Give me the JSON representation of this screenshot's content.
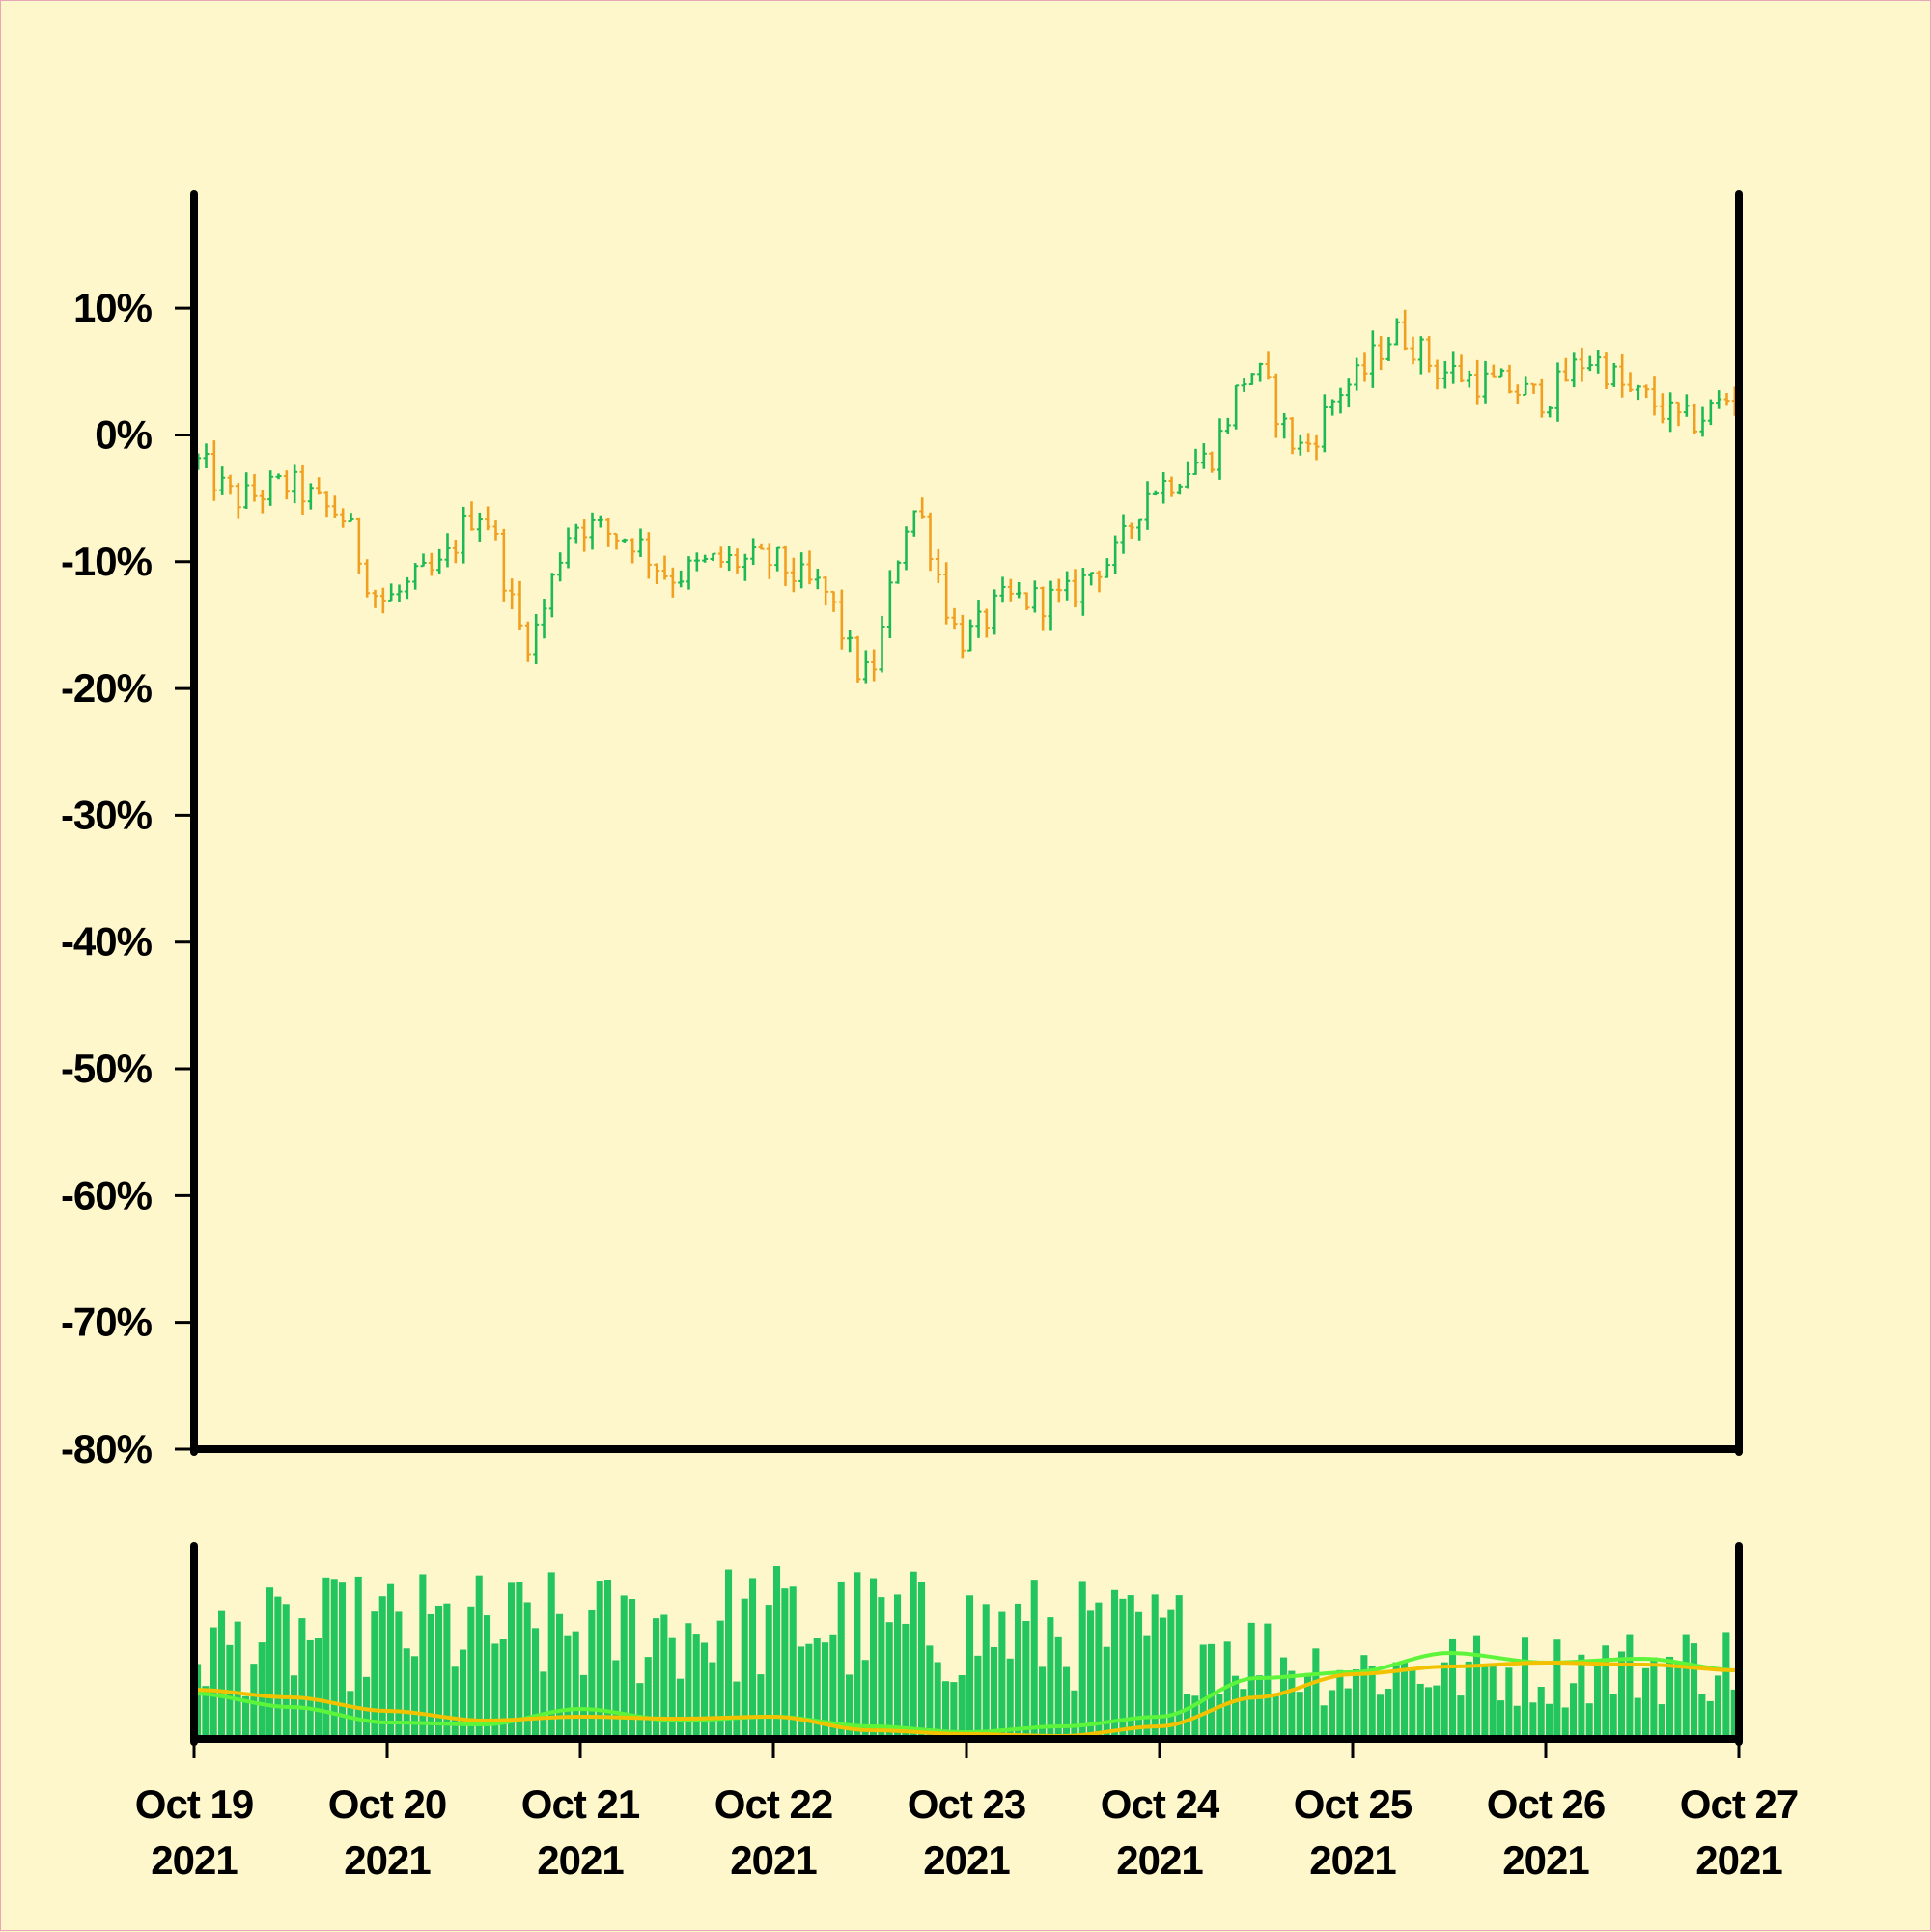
{
  "chart_data": [
    {
      "type": "ohlc",
      "panel": "price",
      "yaxis": {
        "unit": "%",
        "ticks": [
          10,
          0,
          -10,
          -20,
          -30,
          -40,
          -50,
          -60,
          -70,
          -80
        ],
        "tick_labels": [
          "10%",
          "0%",
          "-10%",
          "-20%",
          "-30%",
          "-40%",
          "-50%",
          "-60%",
          "-70%",
          "-80%"
        ],
        "range": [
          -80,
          19
        ]
      },
      "xaxis": {
        "range": [
          "2021-10-19",
          "2021-10-27"
        ],
        "ticks": [
          "2021-10-19",
          "2021-10-20",
          "2021-10-21",
          "2021-10-22",
          "2021-10-23",
          "2021-10-24",
          "2021-10-25",
          "2021-10-26",
          "2021-10-27"
        ],
        "tick_labels": [
          {
            "line1": "Oct 19",
            "line2": "2021"
          },
          {
            "line1": "Oct 20",
            "line2": "2021"
          },
          {
            "line1": "Oct 21",
            "line2": "2021"
          },
          {
            "line1": "Oct 22",
            "line2": "2021"
          },
          {
            "line1": "Oct 23",
            "line2": "2021"
          },
          {
            "line1": "Oct 24",
            "line2": "2021"
          },
          {
            "line1": "Oct 25",
            "line2": "2021"
          },
          {
            "line1": "Oct 26",
            "line2": "2021"
          },
          {
            "line1": "Oct 27",
            "line2": "2021"
          }
        ]
      },
      "colors": {
        "up": "#1db954",
        "down": "#f0a020"
      },
      "bar_interval": "hourly",
      "close_path_anchors": [
        [
          "2021-10-19T00:00",
          -2
        ],
        [
          "2021-10-19T06:00",
          -5
        ],
        [
          "2021-10-19T12:00",
          -4
        ],
        [
          "2021-10-19T18:00",
          -6
        ],
        [
          "2021-10-20T00:00",
          -13
        ],
        [
          "2021-10-20T06:00",
          -11
        ],
        [
          "2021-10-20T12:00",
          -6
        ],
        [
          "2021-10-20T18:00",
          -16
        ],
        [
          "2021-10-21T00:00",
          -7
        ],
        [
          "2021-10-21T06:00",
          -8
        ],
        [
          "2021-10-21T12:00",
          -11
        ],
        [
          "2021-10-21T18:00",
          -10
        ],
        [
          "2021-10-22T00:00",
          -10
        ],
        [
          "2021-10-22T06:00",
          -12
        ],
        [
          "2021-10-22T12:00",
          -19
        ],
        [
          "2021-10-22T18:00",
          -6
        ],
        [
          "2021-10-23T00:00",
          -16
        ],
        [
          "2021-10-23T06:00",
          -13
        ],
        [
          "2021-10-23T12:00",
          -13
        ],
        [
          "2021-10-23T18:00",
          -10
        ],
        [
          "2021-10-24T00:00",
          -4
        ],
        [
          "2021-10-24T06:00",
          -2
        ],
        [
          "2021-10-24T12:00",
          5
        ],
        [
          "2021-10-24T18:00",
          -1
        ],
        [
          "2021-10-25T00:00",
          4
        ],
        [
          "2021-10-25T06:00",
          8
        ],
        [
          "2021-10-25T12:00",
          5
        ],
        [
          "2021-10-25T18:00",
          4
        ],
        [
          "2021-10-26T00:00",
          3
        ],
        [
          "2021-10-26T06:00",
          6
        ],
        [
          "2021-10-26T12:00",
          3
        ],
        [
          "2021-10-26T18:00",
          1
        ],
        [
          "2021-10-27T00:00",
          3
        ]
      ]
    },
    {
      "type": "bar",
      "panel": "volume",
      "colors": {
        "bars": "#22c55e",
        "ma_fast": "#5cf53b",
        "ma_slow": "#f2c200"
      },
      "volume_envelope": [
        [
          "2021-10-19",
          0.6
        ],
        [
          "2021-10-20",
          0.7
        ],
        [
          "2021-10-21",
          0.7
        ],
        [
          "2021-10-22",
          0.75
        ],
        [
          "2021-10-23",
          0.7
        ],
        [
          "2021-10-24",
          0.65
        ],
        [
          "2021-10-25",
          0.45
        ],
        [
          "2021-10-26",
          0.45
        ],
        [
          "2021-10-27",
          0.5
        ]
      ],
      "ma_fast_anchors": [
        [
          "2021-10-19",
          0.22
        ],
        [
          "2021-10-19T12:00",
          0.15
        ],
        [
          "2021-10-20",
          0.07
        ],
        [
          "2021-10-20T12:00",
          0.06
        ],
        [
          "2021-10-21",
          0.14
        ],
        [
          "2021-10-21T12:00",
          0.08
        ],
        [
          "2021-10-22",
          0.1
        ],
        [
          "2021-10-22T12:00",
          0.05
        ],
        [
          "2021-10-23",
          0.02
        ],
        [
          "2021-10-23T12:00",
          0.05
        ],
        [
          "2021-10-24",
          0.1
        ],
        [
          "2021-10-24T12:00",
          0.3
        ],
        [
          "2021-10-25",
          0.33
        ],
        [
          "2021-10-25T12:00",
          0.43
        ],
        [
          "2021-10-26",
          0.38
        ],
        [
          "2021-10-26T12:00",
          0.4
        ],
        [
          "2021-10-27",
          0.34
        ]
      ],
      "ma_slow_anchors": [
        [
          "2021-10-19",
          0.24
        ],
        [
          "2021-10-19T12:00",
          0.2
        ],
        [
          "2021-10-20",
          0.13
        ],
        [
          "2021-10-20T12:00",
          0.08
        ],
        [
          "2021-10-21",
          0.1
        ],
        [
          "2021-10-21T12:00",
          0.09
        ],
        [
          "2021-10-22",
          0.1
        ],
        [
          "2021-10-22T12:00",
          0.03
        ],
        [
          "2021-10-23",
          0.01
        ],
        [
          "2021-10-23T12:00",
          0.0
        ],
        [
          "2021-10-24",
          0.05
        ],
        [
          "2021-10-24T12:00",
          0.2
        ],
        [
          "2021-10-25",
          0.32
        ],
        [
          "2021-10-25T12:00",
          0.36
        ],
        [
          "2021-10-26",
          0.38
        ],
        [
          "2021-10-26T12:00",
          0.37
        ],
        [
          "2021-10-27",
          0.34
        ]
      ]
    }
  ]
}
